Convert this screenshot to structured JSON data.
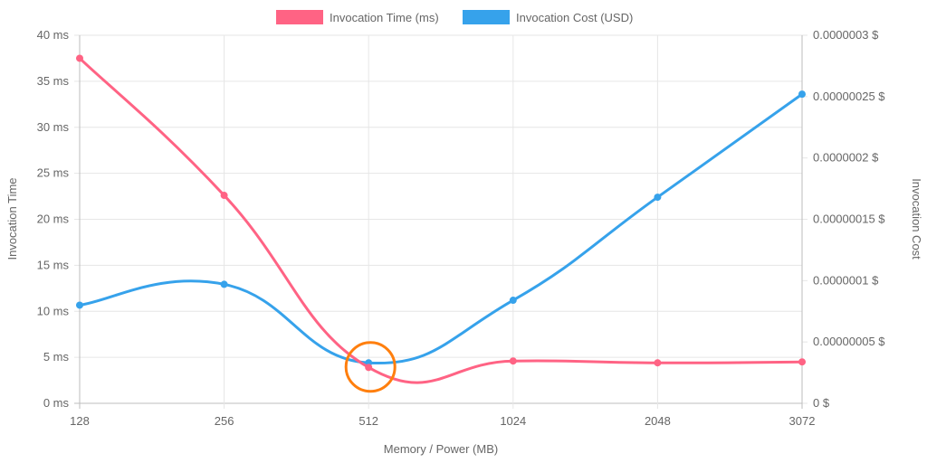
{
  "chart_data": {
    "type": "line",
    "categories": [
      "128",
      "256",
      "512",
      "1024",
      "2048",
      "3072"
    ],
    "xlabel": "Memory / Power (MB)",
    "ylabel_left": "Invocation Time",
    "ylabel_right": "Invocation Cost",
    "y_left": {
      "range": [
        0,
        40
      ],
      "ticks": [
        0,
        5,
        10,
        15,
        20,
        25,
        30,
        35,
        40
      ],
      "tick_labels": [
        "0 ms",
        "5 ms",
        "10 ms",
        "15 ms",
        "20 ms",
        "25 ms",
        "30 ms",
        "35 ms",
        "40 ms"
      ]
    },
    "y_right": {
      "range": [
        0,
        3e-07
      ],
      "ticks": [
        0,
        5e-08,
        1e-07,
        1.5e-07,
        2e-07,
        2.5e-07,
        3e-07
      ],
      "tick_labels": [
        "0 $",
        "0.00000005 $",
        "0.0000001 $",
        "0.00000015 $",
        "0.0000002 $",
        "0.00000025 $",
        "0.0000003 $"
      ]
    },
    "series": [
      {
        "name": "Invocation Time (ms)",
        "axis": "left",
        "color": "#ff6384",
        "values": [
          37.5,
          22.6,
          3.9,
          4.6,
          4.4,
          4.5
        ]
      },
      {
        "name": "Invocation Cost (USD)",
        "axis": "right",
        "color": "#36a2eb",
        "values": [
          8e-08,
          9.7e-08,
          3.3e-08,
          8.4e-08,
          1.68e-07,
          2.52e-07
        ]
      }
    ],
    "legend_position": "top-center",
    "grid": true,
    "annotation": {
      "type": "circle",
      "category": "512",
      "color": "#ff7f0e"
    }
  }
}
